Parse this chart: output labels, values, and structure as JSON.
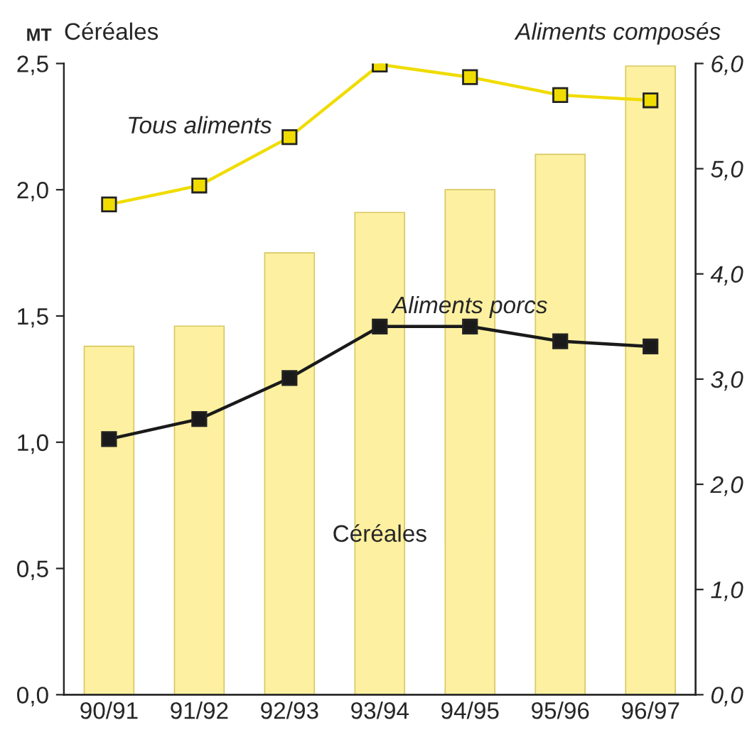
{
  "chart_data": {
    "type": "bar",
    "ylabel": "Céréales",
    "y2label": "Aliments composés",
    "annotations": [
      "MT"
    ],
    "categories": [
      "90/91",
      "91/92",
      "92/93",
      "93/94",
      "94/95",
      "95/96",
      "96/97"
    ],
    "series": [
      {
        "name": "Céréales",
        "color": "#fdf0a0",
        "values": [
          1.38,
          1.46,
          1.75,
          1.91,
          2.0,
          2.14,
          2.49
        ]
      },
      {
        "name": "Tous aliments",
        "type": "line",
        "axis": "y2",
        "color": "#f0dc00",
        "values": [
          4.66,
          4.84,
          5.3,
          5.99,
          5.87,
          5.7,
          5.65
        ]
      },
      {
        "name": "Aliments porcs",
        "type": "line",
        "axis": "y2",
        "color": "#1a1a1a",
        "values": [
          2.43,
          2.62,
          3.01,
          3.5,
          3.5,
          3.36,
          3.31
        ]
      }
    ],
    "ylim": [
      0,
      2.5
    ],
    "yticks": [
      {
        "value": 0,
        "label": "0,0"
      },
      {
        "value": 0.5,
        "label": "0,5"
      },
      {
        "value": 1,
        "label": "1,0"
      },
      {
        "value": 1.5,
        "label": "1,5"
      },
      {
        "value": 2,
        "label": "2,0"
      },
      {
        "value": 2.5,
        "label": "2,5"
      }
    ],
    "y2lim": [
      0,
      6
    ],
    "y2ticks": [
      {
        "value": 0,
        "label": "0,0"
      },
      {
        "value": 1,
        "label": "1,0"
      },
      {
        "value": 2,
        "label": "2,0"
      },
      {
        "value": 3,
        "label": "3,0"
      },
      {
        "value": 4,
        "label": "4,0"
      },
      {
        "value": 5,
        "label": "5,0"
      },
      {
        "value": 6,
        "label": "6,0"
      }
    ],
    "marker": "square",
    "line_style": "solid",
    "grid": false,
    "legend": false
  }
}
